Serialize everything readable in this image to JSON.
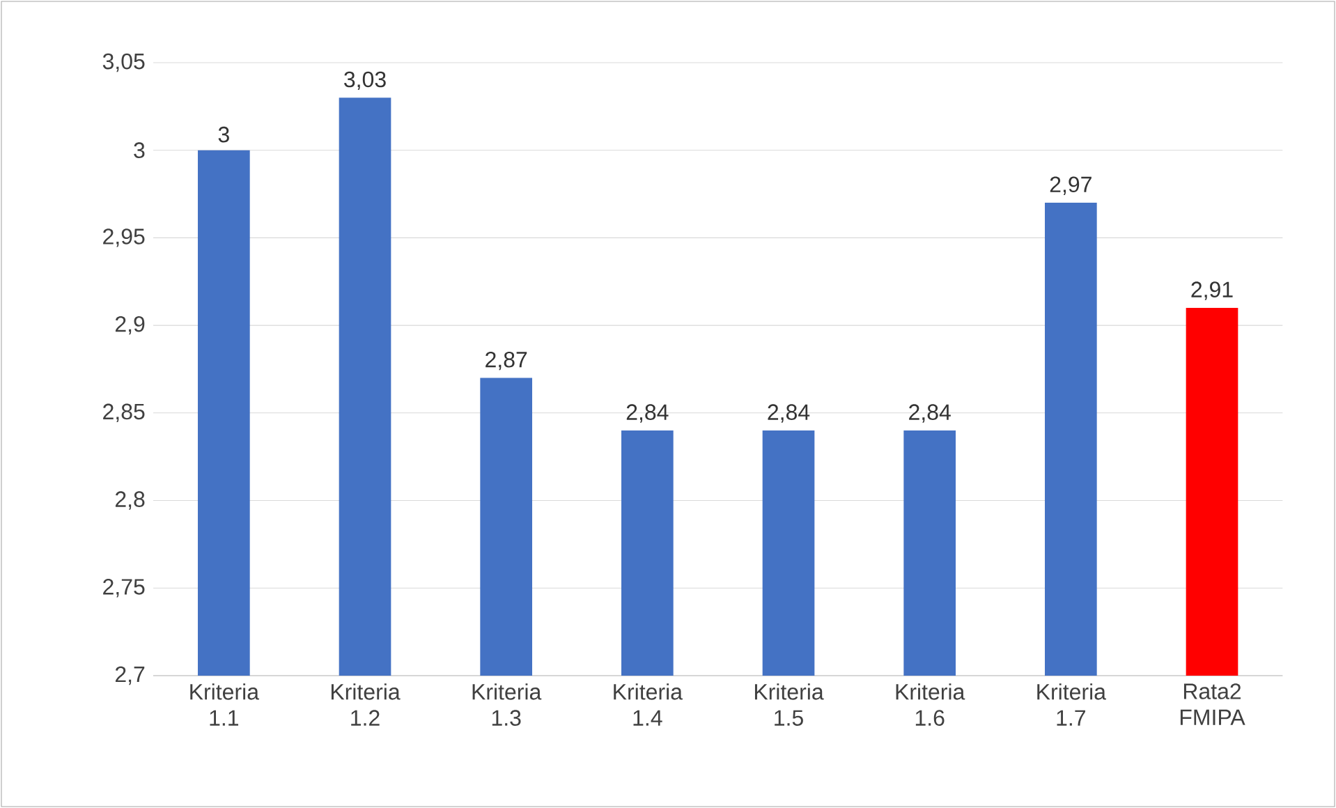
{
  "chart_data": {
    "type": "bar",
    "categories": [
      "Kriteria 1.1",
      "Kriteria 1.2",
      "Kriteria 1.3",
      "Kriteria 1.4",
      "Kriteria 1.5",
      "Kriteria 1.6",
      "Kriteria 1.7",
      "Rata2 FMIPA"
    ],
    "values": [
      3,
      3.03,
      2.87,
      2.84,
      2.84,
      2.84,
      2.97,
      2.91
    ],
    "value_labels": [
      "3",
      "3,03",
      "2,87",
      "2,84",
      "2,84",
      "2,84",
      "2,97",
      "2,91"
    ],
    "colors": [
      "#4472c4",
      "#4472c4",
      "#4472c4",
      "#4472c4",
      "#4472c4",
      "#4472c4",
      "#4472c4",
      "#ff0000"
    ],
    "ylim": [
      2.7,
      3.05
    ],
    "yticks": [
      {
        "value": 2.7,
        "label": "2,7"
      },
      {
        "value": 2.75,
        "label": "2,75"
      },
      {
        "value": 2.8,
        "label": "2,8"
      },
      {
        "value": 2.85,
        "label": "2,85"
      },
      {
        "value": 2.9,
        "label": "2,9"
      },
      {
        "value": 2.95,
        "label": "2,95"
      },
      {
        "value": 3,
        "label": "3"
      },
      {
        "value": 3.05,
        "label": "3,05"
      }
    ],
    "grid": "y"
  }
}
